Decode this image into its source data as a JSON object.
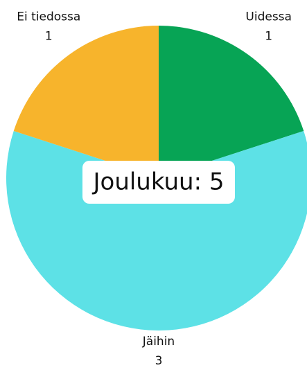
{
  "chart_data": {
    "type": "pie",
    "categories": [
      "Uidessa",
      "Jäihin",
      "Ei tiedossa"
    ],
    "values": [
      1,
      3,
      1
    ],
    "colors": [
      "#07a455",
      "#5de1e6",
      "#f7b42c"
    ],
    "center_label": "Joulukuu: 5"
  }
}
